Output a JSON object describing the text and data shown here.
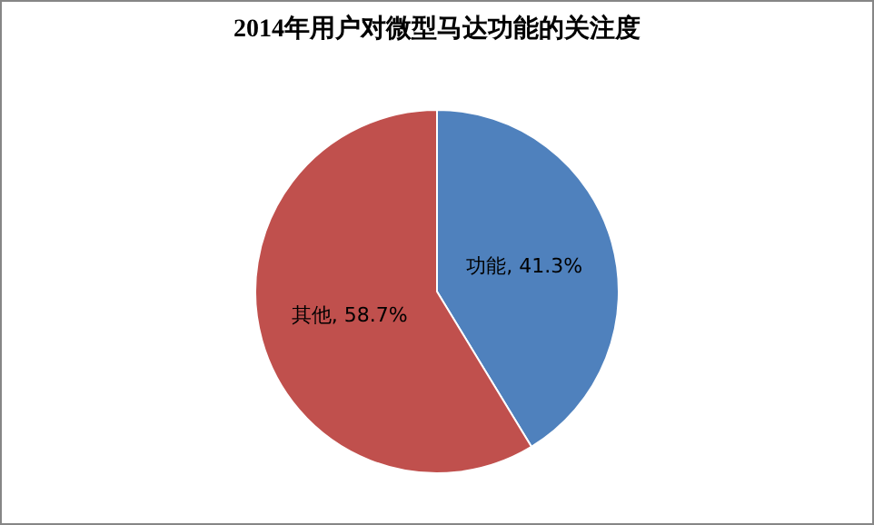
{
  "chart_data": {
    "type": "pie",
    "title": "2014年用户对微型马达功能的关注度",
    "categories": [
      "功能",
      "其他"
    ],
    "values": [
      41.3,
      58.7
    ],
    "colors": [
      "#4f81bd",
      "#c0504d"
    ],
    "value_labels": [
      ", 41.3%",
      ", 58.7%"
    ],
    "legend": false
  }
}
